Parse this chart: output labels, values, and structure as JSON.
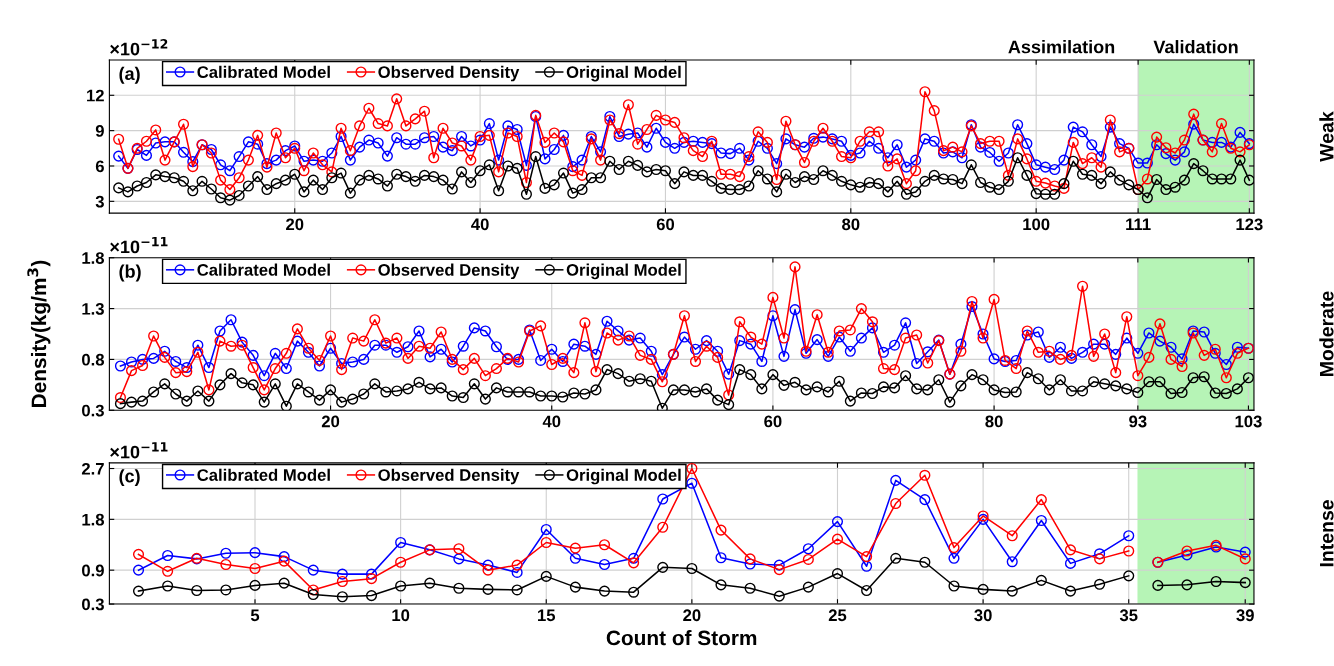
{
  "chart_data": [
    {
      "type": "line",
      "annotations": [
        "(a)",
        "×10$^{−12}$",
        "Weak",
        "Assimilation"
      ],
      "x": [
        1,
        2,
        3,
        4,
        5,
        6,
        7,
        8,
        9,
        10,
        11,
        12,
        13,
        14,
        15,
        16,
        17,
        18,
        19,
        20,
        21,
        22,
        23,
        24,
        25,
        26,
        27,
        28,
        29,
        30,
        31,
        32,
        33,
        34,
        35,
        36,
        37,
        38,
        39,
        40,
        41,
        42,
        43,
        44,
        45,
        46,
        47,
        48,
        49,
        50,
        51,
        52,
        53,
        54,
        55,
        56,
        57,
        58,
        59,
        60,
        61,
        62,
        63,
        64,
        65,
        66,
        67,
        68,
        69,
        70,
        71,
        72,
        73,
        74,
        75,
        76,
        77,
        78,
        79,
        80,
        81,
        82,
        83,
        84,
        85,
        86,
        87,
        88,
        89,
        90,
        91,
        92,
        93,
        94,
        95,
        96,
        97,
        98,
        99,
        100,
        101,
        102,
        103,
        104,
        105,
        106,
        107,
        108,
        109,
        110,
        111,
        112,
        113,
        114,
        115,
        116,
        117,
        118,
        119,
        120,
        121,
        122,
        123
      ],
      "series": [
        {
          "name": "Calibrated Model",
          "color": "#0000ff",
          "values": [
            6.84,
            5.8,
            7.4,
            6.9,
            7.95,
            8.05,
            8.05,
            7.16,
            6.37,
            7.8,
            7.4,
            6.1,
            5.6,
            6.8,
            8.05,
            7.85,
            6.2,
            6.5,
            7.3,
            7.7,
            6.4,
            6.5,
            6.4,
            7.1,
            8.5,
            6.5,
            7.6,
            8.2,
            7.95,
            6.84,
            8.4,
            7.85,
            7.85,
            8.4,
            8.5,
            7.6,
            7.3,
            8.5,
            7.7,
            8.2,
            9.6,
            6.5,
            9.4,
            9.1,
            6.05,
            10.2,
            6.6,
            7.4,
            8.6,
            5.95,
            6.5,
            8.5,
            7.2,
            10.2,
            8.5,
            8.7,
            8.8,
            7.6,
            9.2,
            8.0,
            7.5,
            8.0,
            8.1,
            8.0,
            7.9,
            7.1,
            7.05,
            7.5,
            6.5,
            8.1,
            7.5,
            6.2,
            8.3,
            7.8,
            7.6,
            8.35,
            8.45,
            8.3,
            8.1,
            6.9,
            7.1,
            8.1,
            7.5,
            6.7,
            7.8,
            5.9,
            6.5,
            8.3,
            8.1,
            7.1,
            7.2,
            6.7,
            9.5,
            7.6,
            7.15,
            6.4,
            7.1,
            9.5,
            7.9,
            6.1,
            5.9,
            5.7,
            6.5,
            9.3,
            8.9,
            7.8,
            6.8,
            9.3,
            7.9,
            7.5,
            6.25,
            6.25,
            7.8,
            7.05,
            6.5,
            7.2,
            9.55,
            8.2,
            8.0,
            8.0,
            7.6,
            8.85,
            7.9
          ]
        },
        {
          "name": "Observed Density",
          "color": "#ff0000",
          "values": [
            8.27,
            5.8,
            7.5,
            8.1,
            9.06,
            6.5,
            8.05,
            9.54,
            5.95,
            7.8,
            7.1,
            4.8,
            4.0,
            5.0,
            6.5,
            8.6,
            5.9,
            8.8,
            6.7,
            7.5,
            5.6,
            7.1,
            6.1,
            5.5,
            9.2,
            7.3,
            9.4,
            10.9,
            9.6,
            9.4,
            11.7,
            9.4,
            10.0,
            10.65,
            6.7,
            9.2,
            7.95,
            7.7,
            6.5,
            8.5,
            8.6,
            5.5,
            8.8,
            8.5,
            4.6,
            10.3,
            8.0,
            8.8,
            8.05,
            5.6,
            5.2,
            8.3,
            6.5,
            9.9,
            8.75,
            11.2,
            7.85,
            9.1,
            10.3,
            9.9,
            9.7,
            8.4,
            7.3,
            6.8,
            8.1,
            5.3,
            5.3,
            5.1,
            6.8,
            8.9,
            8.0,
            4.85,
            9.8,
            7.8,
            6.3,
            8.1,
            9.2,
            8.1,
            6.8,
            6.7,
            8.1,
            8.9,
            8.9,
            6.0,
            6.6,
            4.5,
            5.6,
            12.3,
            10.7,
            7.3,
            7.6,
            7.2,
            9.4,
            7.9,
            8.1,
            8.1,
            5.2,
            8.3,
            6.6,
            4.7,
            4.55,
            4.3,
            4.1,
            8.0,
            6.2,
            6.7,
            5.9,
            9.9,
            7.2,
            7.5,
            4.0,
            4.9,
            8.45,
            7.55,
            7.1,
            8.2,
            10.4,
            8.2,
            7.2,
            9.6,
            7.5,
            7.2,
            7.8
          ]
        },
        {
          "name": "Original Model",
          "color": "#000000",
          "values": [
            4.14,
            3.8,
            4.3,
            4.6,
            5.25,
            5.1,
            5.0,
            4.7,
            3.9,
            4.7,
            4.05,
            3.3,
            3.1,
            3.5,
            4.3,
            5.1,
            4.0,
            4.5,
            4.8,
            5.3,
            3.8,
            4.8,
            4.0,
            5.0,
            5.4,
            3.7,
            4.8,
            5.2,
            4.9,
            4.3,
            5.3,
            5.1,
            4.7,
            5.2,
            5.1,
            4.8,
            4.05,
            5.5,
            4.6,
            5.6,
            6.1,
            3.9,
            6.0,
            5.8,
            3.6,
            6.8,
            4.1,
            4.4,
            5.4,
            3.7,
            4.0,
            5.0,
            5.0,
            6.4,
            5.7,
            6.4,
            6.05,
            5.5,
            5.7,
            5.6,
            4.5,
            5.5,
            5.2,
            5.2,
            4.7,
            4.1,
            4.0,
            4.0,
            4.3,
            5.6,
            4.9,
            3.8,
            5.3,
            4.6,
            5.1,
            4.85,
            5.6,
            5.2,
            4.7,
            4.4,
            4.2,
            4.6,
            4.5,
            3.8,
            4.7,
            3.6,
            3.8,
            4.7,
            5.2,
            4.9,
            4.85,
            4.5,
            6.1,
            4.6,
            4.2,
            4.0,
            4.7,
            6.7,
            5.2,
            3.65,
            3.6,
            3.6,
            4.5,
            6.4,
            5.3,
            5.2,
            4.5,
            5.5,
            4.8,
            4.4,
            4.0,
            3.3,
            4.85,
            4.0,
            4.2,
            4.8,
            6.2,
            5.6,
            4.9,
            4.9,
            4.9,
            6.5,
            4.8
          ]
        }
      ],
      "xlim": [
        0,
        123.5
      ],
      "xticks": [
        20,
        40,
        60,
        80,
        100,
        111,
        123
      ],
      "ylim": [
        2,
        15
      ],
      "yticks": [
        3,
        6,
        9,
        12
      ],
      "bands": [
        {
          "axis": "x",
          "from": 111,
          "to": 123.5,
          "label": "Validation",
          "color": "#9ef09e"
        }
      ],
      "grid": true,
      "legend": "top left",
      "marker": "circle",
      "line_style": "solid"
    },
    {
      "type": "line",
      "ylabel": "Density(kg/m$^{3}$)",
      "annotations": [
        "(b)",
        "×10$^{−11}$",
        "Moderate"
      ],
      "x": [
        1,
        2,
        3,
        4,
        5,
        6,
        7,
        8,
        9,
        10,
        11,
        12,
        13,
        14,
        15,
        16,
        17,
        18,
        19,
        20,
        21,
        22,
        23,
        24,
        25,
        26,
        27,
        28,
        29,
        30,
        31,
        32,
        33,
        34,
        35,
        36,
        37,
        38,
        39,
        40,
        41,
        42,
        43,
        44,
        45,
        46,
        47,
        48,
        49,
        50,
        51,
        52,
        53,
        54,
        55,
        56,
        57,
        58,
        59,
        60,
        61,
        62,
        63,
        64,
        65,
        66,
        67,
        68,
        69,
        70,
        71,
        72,
        73,
        74,
        75,
        76,
        77,
        78,
        79,
        80,
        81,
        82,
        83,
        84,
        85,
        86,
        87,
        88,
        89,
        90,
        91,
        92,
        93,
        94,
        95,
        96,
        97,
        98,
        99,
        100,
        101,
        102,
        103
      ],
      "series": [
        {
          "name": "Calibrated Model",
          "color": "#0000ff",
          "values": [
            0.735,
            0.775,
            0.8,
            0.81,
            0.88,
            0.78,
            0.72,
            0.94,
            0.72,
            1.08,
            1.19,
            0.97,
            0.84,
            0.64,
            0.86,
            0.71,
            0.98,
            0.87,
            0.735,
            0.91,
            0.76,
            0.775,
            0.8,
            0.94,
            0.94,
            0.87,
            0.925,
            1.08,
            0.825,
            0.9,
            0.775,
            0.93,
            1.11,
            1.08,
            0.925,
            0.8,
            0.8,
            1.09,
            0.79,
            0.9,
            0.78,
            0.95,
            0.93,
            0.85,
            1.175,
            1.08,
            0.99,
            1.01,
            0.88,
            0.65,
            0.85,
            1.02,
            0.9,
            0.985,
            0.88,
            0.655,
            0.985,
            0.95,
            0.78,
            1.23,
            0.83,
            1.29,
            0.86,
            0.995,
            0.83,
            1.02,
            0.88,
            1.01,
            1.11,
            0.87,
            0.94,
            1.16,
            0.76,
            0.875,
            0.99,
            0.655,
            0.95,
            1.32,
            1.05,
            0.805,
            0.78,
            0.79,
            1.04,
            1.07,
            0.82,
            0.92,
            0.81,
            0.87,
            0.95,
            0.95,
            0.85,
            1.01,
            0.86,
            1.06,
            0.98,
            0.92,
            0.805,
            1.08,
            1.07,
            0.86,
            0.75,
            0.92,
            0.91
          ]
        },
        {
          "name": "Observed Density",
          "color": "#ff0000",
          "values": [
            0.425,
            0.69,
            0.74,
            1.03,
            0.82,
            0.67,
            0.68,
            0.87,
            0.5,
            0.98,
            0.93,
            0.94,
            0.72,
            0.5,
            0.71,
            0.86,
            1.1,
            0.91,
            0.79,
            1.03,
            0.7,
            1.01,
            0.98,
            1.19,
            0.96,
            1.01,
            0.81,
            0.93,
            0.91,
            1.07,
            0.8,
            0.7,
            0.81,
            0.64,
            0.71,
            0.81,
            0.775,
            1.08,
            1.13,
            0.75,
            0.81,
            0.67,
            1.16,
            0.68,
            1.06,
            0.99,
            1.03,
            0.84,
            0.8,
            0.58,
            0.85,
            1.23,
            0.78,
            0.93,
            0.82,
            0.45,
            1.17,
            1.02,
            0.95,
            1.41,
            1.01,
            1.71,
            0.88,
            1.24,
            0.87,
            1.08,
            1.09,
            1.3,
            1.17,
            0.71,
            0.7,
            1.01,
            1.04,
            0.765,
            0.985,
            0.655,
            0.88,
            1.37,
            1.01,
            1.39,
            0.79,
            0.71,
            1.08,
            0.87,
            0.88,
            0.8,
            0.84,
            1.52,
            0.83,
            1.05,
            0.67,
            1.22,
            0.64,
            0.82,
            1.15,
            0.8,
            0.73,
            1.06,
            0.84,
            0.9,
            0.62,
            0.86,
            0.91
          ]
        },
        {
          "name": "Original Model",
          "color": "#000000",
          "values": [
            0.365,
            0.38,
            0.39,
            0.48,
            0.56,
            0.46,
            0.39,
            0.49,
            0.39,
            0.55,
            0.66,
            0.57,
            0.55,
            0.38,
            0.56,
            0.34,
            0.56,
            0.48,
            0.4,
            0.5,
            0.38,
            0.41,
            0.46,
            0.56,
            0.48,
            0.49,
            0.51,
            0.575,
            0.51,
            0.52,
            0.44,
            0.425,
            0.56,
            0.41,
            0.52,
            0.48,
            0.48,
            0.48,
            0.44,
            0.44,
            0.43,
            0.47,
            0.46,
            0.5,
            0.7,
            0.66,
            0.585,
            0.61,
            0.585,
            0.32,
            0.5,
            0.5,
            0.48,
            0.51,
            0.4,
            0.355,
            0.7,
            0.65,
            0.51,
            0.65,
            0.545,
            0.575,
            0.5,
            0.53,
            0.48,
            0.585,
            0.39,
            0.47,
            0.465,
            0.53,
            0.52,
            0.64,
            0.51,
            0.5,
            0.6,
            0.38,
            0.54,
            0.65,
            0.6,
            0.5,
            0.475,
            0.48,
            0.67,
            0.61,
            0.5,
            0.6,
            0.49,
            0.49,
            0.58,
            0.56,
            0.54,
            0.51,
            0.475,
            0.58,
            0.58,
            0.465,
            0.475,
            0.62,
            0.63,
            0.47,
            0.465,
            0.51,
            0.62
          ]
        }
      ],
      "xlim": [
        0,
        103.5
      ],
      "xticks": [
        20,
        40,
        60,
        80,
        93,
        103
      ],
      "ylim": [
        0.3,
        1.8
      ],
      "yticks": [
        0.3,
        0.8,
        1.3,
        1.8
      ],
      "bands": [
        {
          "axis": "x",
          "from": 93,
          "to": 103.5,
          "color": "#9ef09e"
        }
      ],
      "grid": true,
      "legend": "top left",
      "marker": "circle",
      "line_style": "solid"
    },
    {
      "type": "line",
      "xlabel": "Count of Storm",
      "annotations": [
        "(c)",
        "×10$^{−11}$",
        "Intense"
      ],
      "series": [
        {
          "name": "Calibrated Model",
          "color": "#0000ff",
          "x": [
            1,
            2,
            3,
            4,
            5,
            6,
            7,
            8,
            9,
            10,
            11,
            12,
            13,
            14,
            15,
            16,
            17,
            18,
            19,
            20,
            21,
            22,
            23,
            24,
            25,
            26,
            27,
            28,
            29,
            30,
            31,
            32,
            33,
            34,
            35
          ],
          "values": [
            0.9,
            1.16,
            1.1,
            1.2,
            1.21,
            1.14,
            0.9,
            0.83,
            0.83,
            1.39,
            1.26,
            1.1,
            0.99,
            0.86,
            1.62,
            1.11,
            1.0,
            1.11,
            2.16,
            2.44,
            1.12,
            1.01,
            0.99,
            1.28,
            1.76,
            0.97,
            2.49,
            2.15,
            1.11,
            1.8,
            1.05,
            1.78,
            1.02,
            1.19,
            1.51
          ]
        },
        {
          "name": "Observed Density",
          "color": "#ff0000",
          "x": [
            1,
            2,
            3,
            4,
            5,
            6,
            7,
            8,
            9,
            10,
            11,
            12,
            13,
            14,
            15,
            16,
            17,
            18,
            19,
            20,
            21,
            22,
            23,
            24,
            25,
            26,
            27,
            28,
            29,
            30,
            31,
            32,
            33,
            34,
            35
          ],
          "values": [
            1.18,
            0.88,
            1.11,
            1.0,
            0.93,
            1.06,
            0.55,
            0.7,
            0.75,
            1.04,
            1.26,
            1.28,
            0.9,
            0.99,
            1.39,
            1.29,
            1.35,
            1.03,
            1.66,
            2.7,
            1.61,
            1.1,
            0.91,
            1.09,
            1.45,
            1.14,
            2.08,
            2.58,
            1.3,
            1.86,
            1.51,
            2.15,
            1.26,
            1.1,
            1.24
          ]
        },
        {
          "name": "Original Model",
          "color": "#000000",
          "x": [
            1,
            2,
            3,
            4,
            5,
            6,
            7,
            8,
            9,
            10,
            11,
            12,
            13,
            14,
            15,
            16,
            17,
            18,
            19,
            20,
            21,
            22,
            23,
            24,
            25,
            26,
            27,
            28,
            29,
            30,
            31,
            32,
            33,
            34,
            35
          ],
          "values": [
            0.53,
            0.62,
            0.54,
            0.55,
            0.63,
            0.67,
            0.47,
            0.43,
            0.45,
            0.62,
            0.67,
            0.58,
            0.56,
            0.55,
            0.79,
            0.6,
            0.53,
            0.51,
            0.95,
            0.93,
            0.64,
            0.58,
            0.44,
            0.6,
            0.84,
            0.54,
            1.11,
            1.04,
            0.62,
            0.56,
            0.53,
            0.72,
            0.53,
            0.65,
            0.8
          ]
        },
        {
          "color": "#0000ff",
          "x": [
            36,
            37,
            38,
            39
          ],
          "values": [
            1.04,
            1.17,
            1.31,
            1.22
          ]
        },
        {
          "color": "#ff0000",
          "x": [
            36,
            37,
            38,
            39
          ],
          "values": [
            1.04,
            1.24,
            1.34,
            1.1
          ]
        },
        {
          "color": "#000000",
          "x": [
            36,
            37,
            38,
            39
          ],
          "values": [
            0.63,
            0.64,
            0.7,
            0.68
          ]
        }
      ],
      "xlim": [
        0,
        39.3
      ],
      "xticks": [
        5,
        10,
        15,
        20,
        25,
        30,
        35,
        39
      ],
      "ylim": [
        0.3,
        2.8
      ],
      "yticks": [
        0.3,
        0.9,
        1.8,
        2.7
      ],
      "bands": [
        {
          "axis": "x",
          "from": 35.3,
          "to": 39.3,
          "color": "#9ef09e"
        }
      ],
      "grid": true,
      "legend": "top left",
      "marker": "circle",
      "line_style": "solid"
    }
  ]
}
